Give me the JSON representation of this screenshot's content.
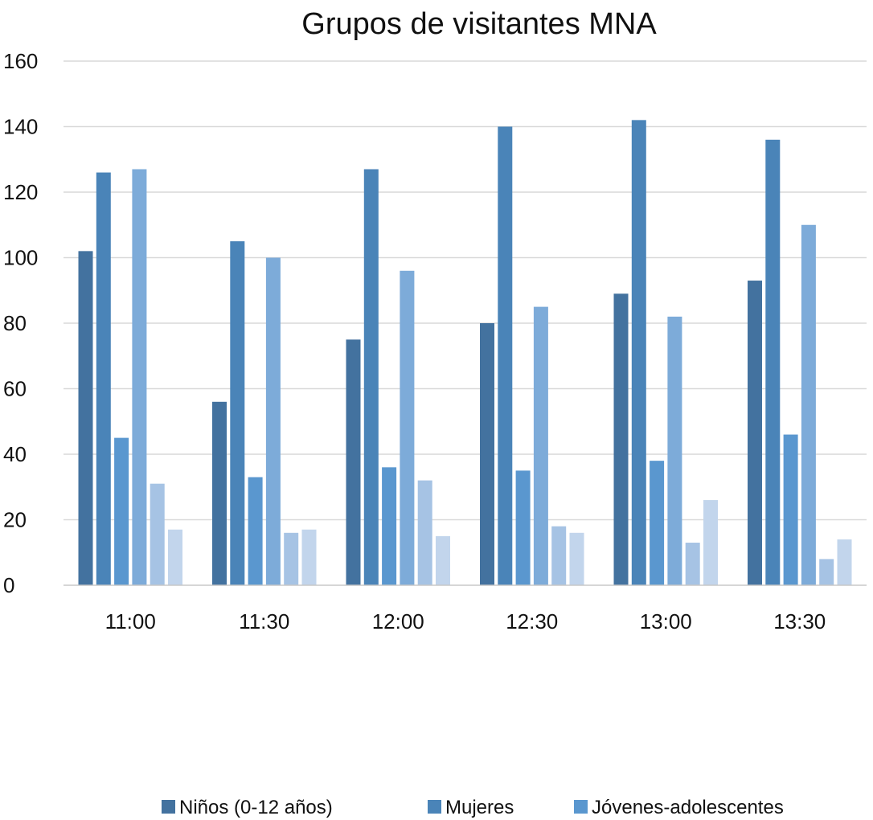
{
  "chart_data": {
    "type": "bar",
    "title": "Grupos de visitantes MNA",
    "xlabel": "",
    "ylabel": "",
    "categories": [
      "11:00",
      "11:30",
      "12:00",
      "12:30",
      "13:00",
      "13:30"
    ],
    "ylim": [
      0,
      160
    ],
    "yticks": [
      "0",
      "20",
      "40",
      "60",
      "80",
      "100",
      "120",
      "140",
      "160"
    ],
    "grid": true,
    "legend_position": "bottom",
    "series": [
      {
        "name": "Niños (0-12 años)",
        "color": "#43729f",
        "values": [
          102,
          56,
          75,
          80,
          89,
          93
        ]
      },
      {
        "name": "Mujeres",
        "color": "#4a84b8",
        "values": [
          126,
          105,
          127,
          140,
          142,
          136
        ]
      },
      {
        "name": "Jóvenes-adolescentes",
        "color": "#5a97cf",
        "values": [
          45,
          33,
          36,
          35,
          38,
          46
        ]
      },
      {
        "color": "#7dabd9",
        "values": [
          127,
          100,
          96,
          85,
          82,
          110
        ]
      },
      {
        "color": "#a6c3e4",
        "values": [
          31,
          16,
          32,
          18,
          13,
          8
        ]
      },
      {
        "color": "#c2d5ec",
        "values": [
          17,
          17,
          15,
          16,
          26,
          14
        ]
      }
    ]
  }
}
